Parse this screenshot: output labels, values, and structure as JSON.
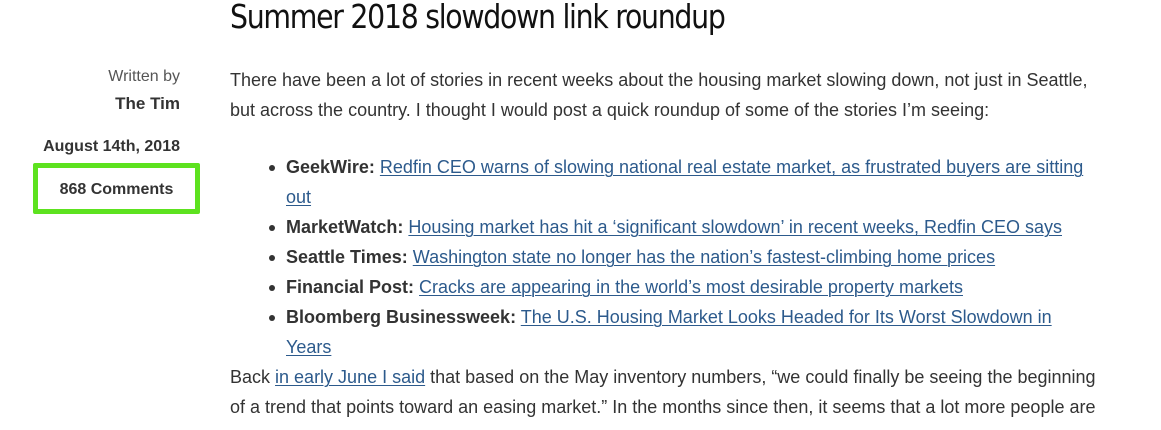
{
  "meta": {
    "written_by_label": "Written by",
    "author": "The Tim",
    "date": "August 14th, 2018",
    "comments_label": "868 Comments"
  },
  "post": {
    "title": "Summer 2018 slowdown link roundup",
    "intro": "There have been a lot of stories in recent weeks about the housing market slowing down, not just in Seattle, but across the country. I thought I would post a quick roundup of some of the stories I’m seeing:",
    "links": [
      {
        "source": "GeekWire:",
        "text": "Redfin CEO warns of slowing national real estate market, as frustrated buyers are sitting out"
      },
      {
        "source": "MarketWatch:",
        "text": "Housing market has hit a ‘significant slowdown’ in recent weeks, Redfin CEO says"
      },
      {
        "source": "Seattle Times:",
        "text": "Washington state no longer has the nation’s fastest-climbing home prices"
      },
      {
        "source": "Financial Post:",
        "text": "Cracks are appearing in the world’s most desirable property markets"
      },
      {
        "source": "Bloomberg Businessweek:",
        "text": "The U.S. Housing Market Looks Headed for Its Worst Slowdown in Years"
      }
    ],
    "back": {
      "before": "Back ",
      "link_text": "in early June I said",
      "after": " that based on the May inventory numbers, “we could finally be seeing the beginning of a trend that points toward an easing market.” In the months since then, it seems that a lot more people are"
    }
  },
  "colors": {
    "highlight": "#5de21f",
    "link": "#2c5a8c"
  }
}
